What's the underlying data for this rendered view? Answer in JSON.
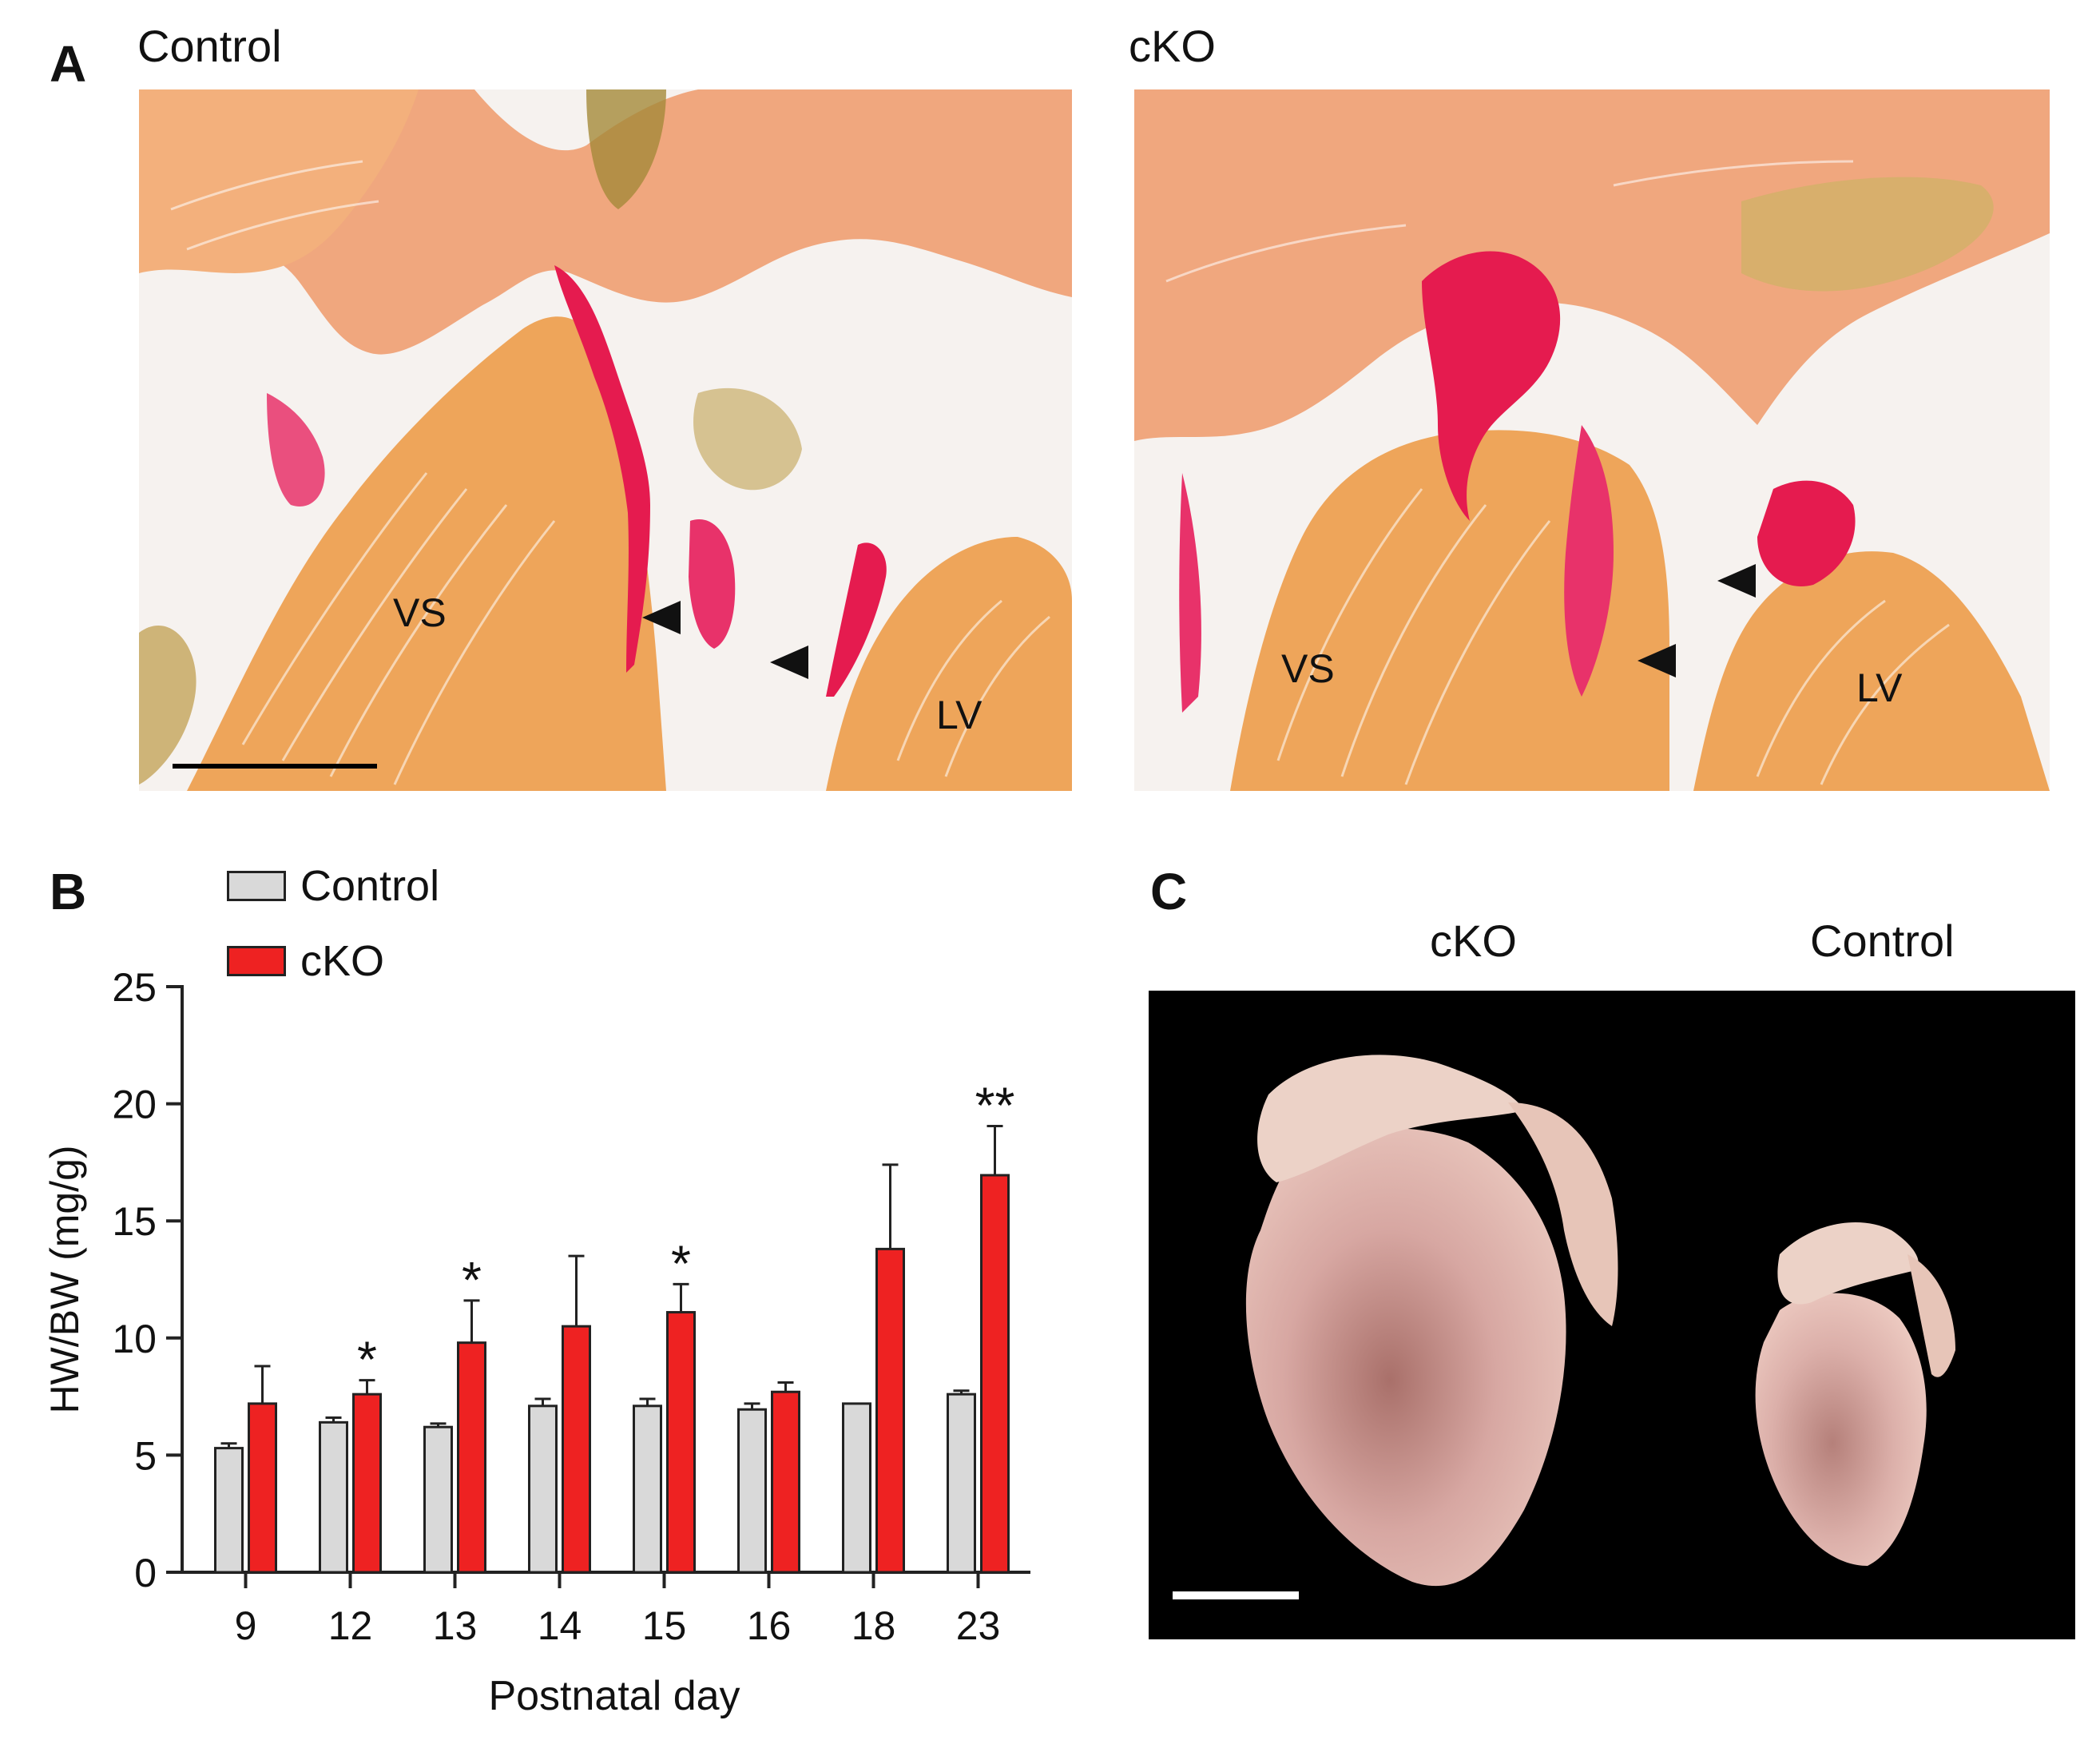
{
  "panel_a": {
    "letter": "A",
    "left": {
      "title": "Control",
      "labels": {
        "vs": "VS",
        "lv": "LV"
      }
    },
    "right": {
      "title": "cKO",
      "labels": {
        "vs": "VS",
        "lv": "LV"
      }
    }
  },
  "panel_b": {
    "letter": "B"
  },
  "panel_c": {
    "letter": "C",
    "label_left": "cKO",
    "label_right": "Control"
  },
  "chart_data": {
    "type": "bar",
    "categories": [
      "9",
      "12",
      "13",
      "14",
      "15",
      "16",
      "18",
      "23"
    ],
    "series": [
      {
        "name": "Control",
        "color": "#d9d9d9",
        "values": [
          5.3,
          6.4,
          6.2,
          7.1,
          7.1,
          6.95,
          7.2,
          7.6
        ],
        "errors": [
          0.2,
          0.2,
          0.15,
          0.3,
          0.3,
          0.25,
          0,
          0.15
        ]
      },
      {
        "name": "cKO",
        "color": "#ee2222",
        "values": [
          7.2,
          7.6,
          9.8,
          10.5,
          11.1,
          7.7,
          13.8,
          16.95
        ],
        "errors": [
          1.6,
          0.6,
          1.8,
          3.0,
          1.2,
          0.4,
          3.6,
          2.1
        ]
      }
    ],
    "significance": [
      "",
      "*",
      "*",
      "",
      "*",
      "",
      "",
      "**"
    ],
    "xlabel": "Postnatal day",
    "ylabel": "HW/BW (mg/g)",
    "ylim": [
      0,
      25
    ],
    "yticks": [
      0,
      5,
      10,
      15,
      20,
      25
    ],
    "legend": "top-left"
  }
}
